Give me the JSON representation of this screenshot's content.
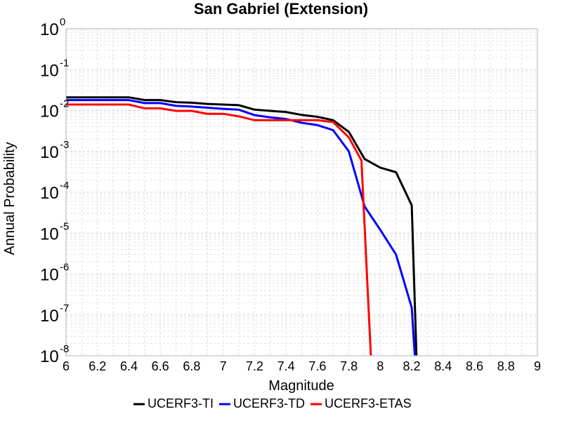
{
  "chart_data": {
    "type": "line",
    "title": "San Gabriel (Extension)",
    "xlabel": "Magnitude",
    "ylabel": "Annual Probability",
    "xlim": [
      6,
      9
    ],
    "ylim": [
      1e-08,
      1
    ],
    "yscale": "log",
    "grid": true,
    "legend_position": "bottom",
    "x_ticks": [
      "6",
      "6.2",
      "6.4",
      "6.6",
      "6.8",
      "7",
      "7.2",
      "7.4",
      "7.6",
      "7.8",
      "8",
      "8.2",
      "8.4",
      "8.6",
      "8.8",
      "9"
    ],
    "y_ticks": [
      {
        "base": "10",
        "exp": "0",
        "value": 1
      },
      {
        "base": "10",
        "exp": "-1",
        "value": 0.1
      },
      {
        "base": "10",
        "exp": "-2",
        "value": 0.01
      },
      {
        "base": "10",
        "exp": "-3",
        "value": 0.001
      },
      {
        "base": "10",
        "exp": "-4",
        "value": 0.0001
      },
      {
        "base": "10",
        "exp": "-5",
        "value": 1e-05
      },
      {
        "base": "10",
        "exp": "-6",
        "value": 1e-06
      },
      {
        "base": "10",
        "exp": "-7",
        "value": 1e-07
      },
      {
        "base": "10",
        "exp": "-8",
        "value": 1e-08
      }
    ],
    "series": [
      {
        "name": "UCERF3-TI",
        "color": "#000000",
        "x": [
          6.0,
          6.1,
          6.2,
          6.3,
          6.4,
          6.5,
          6.6,
          6.7,
          6.8,
          6.9,
          7.0,
          7.1,
          7.2,
          7.3,
          7.4,
          7.5,
          7.6,
          7.7,
          7.8,
          7.9,
          8.0,
          8.1,
          8.2,
          8.23
        ],
        "y": [
          0.021,
          0.021,
          0.021,
          0.021,
          0.021,
          0.018,
          0.018,
          0.016,
          0.0155,
          0.0145,
          0.014,
          0.0135,
          0.0105,
          0.0098,
          0.0092,
          0.0078,
          0.007,
          0.0058,
          0.003,
          0.00065,
          0.0004,
          0.00031,
          4.8e-05,
          1e-08
        ]
      },
      {
        "name": "UCERF3-TD",
        "color": "#0000ff",
        "x": [
          6.0,
          6.1,
          6.2,
          6.3,
          6.4,
          6.5,
          6.6,
          6.7,
          6.8,
          6.9,
          7.0,
          7.1,
          7.2,
          7.3,
          7.4,
          7.5,
          7.6,
          7.7,
          7.8,
          7.9,
          8.0,
          8.1,
          8.2,
          8.22
        ],
        "y": [
          0.018,
          0.018,
          0.018,
          0.018,
          0.018,
          0.0152,
          0.0152,
          0.013,
          0.0125,
          0.0117,
          0.011,
          0.0105,
          0.0077,
          0.0068,
          0.0062,
          0.005,
          0.0044,
          0.0033,
          0.001,
          4.5e-05,
          1.2e-05,
          3e-06,
          1.5e-07,
          1e-08
        ]
      },
      {
        "name": "UCERF3-ETAS",
        "color": "#ff0000",
        "x": [
          6.0,
          6.1,
          6.2,
          6.3,
          6.4,
          6.5,
          6.6,
          6.7,
          6.8,
          6.9,
          7.0,
          7.1,
          7.2,
          7.3,
          7.4,
          7.5,
          7.6,
          7.7,
          7.8,
          7.88,
          7.94
        ],
        "y": [
          0.014,
          0.014,
          0.014,
          0.014,
          0.014,
          0.0113,
          0.0113,
          0.0098,
          0.0098,
          0.0083,
          0.0083,
          0.0072,
          0.0058,
          0.0058,
          0.0058,
          0.0058,
          0.0058,
          0.0052,
          0.0022,
          0.0006,
          1e-08
        ]
      }
    ]
  }
}
